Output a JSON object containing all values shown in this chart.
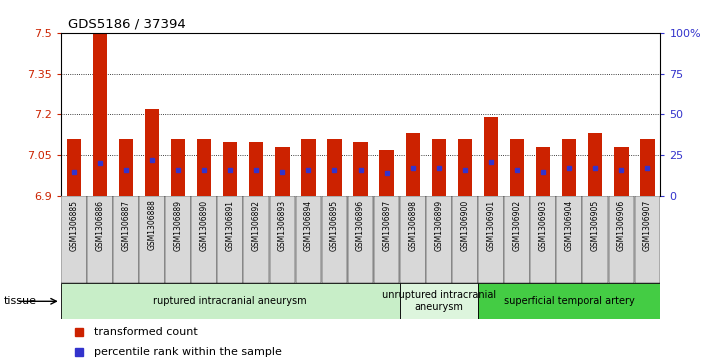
{
  "title": "GDS5186 / 37394",
  "samples": [
    "GSM1306885",
    "GSM1306886",
    "GSM1306887",
    "GSM1306888",
    "GSM1306889",
    "GSM1306890",
    "GSM1306891",
    "GSM1306892",
    "GSM1306893",
    "GSM1306894",
    "GSM1306895",
    "GSM1306896",
    "GSM1306897",
    "GSM1306898",
    "GSM1306899",
    "GSM1306900",
    "GSM1306901",
    "GSM1306902",
    "GSM1306903",
    "GSM1306904",
    "GSM1306905",
    "GSM1306906",
    "GSM1306907"
  ],
  "bar_values": [
    7.11,
    7.5,
    7.11,
    7.22,
    7.11,
    7.11,
    7.1,
    7.1,
    7.08,
    7.11,
    7.11,
    7.1,
    7.07,
    7.13,
    7.11,
    7.11,
    7.19,
    7.11,
    7.08,
    7.11,
    7.13,
    7.08,
    7.11
  ],
  "percentile_values": [
    15,
    20,
    16,
    22,
    16,
    16,
    16,
    16,
    15,
    16,
    16,
    16,
    14,
    17,
    17,
    16,
    21,
    16,
    15,
    17,
    17,
    16,
    17
  ],
  "ymin": 6.9,
  "ymax": 7.5,
  "yticks": [
    6.9,
    7.05,
    7.2,
    7.35,
    7.5
  ],
  "ytick_labels": [
    "6.9",
    "7.05",
    "7.2",
    "7.35",
    "7.5"
  ],
  "right_yticks": [
    0,
    25,
    50,
    75,
    100
  ],
  "right_ytick_labels": [
    "0",
    "25",
    "50",
    "75",
    "100%"
  ],
  "bar_color": "#cc2200",
  "blue_color": "#3333cc",
  "xlabel_bg": "#d8d8d8",
  "tissue_groups": [
    {
      "label": "ruptured intracranial aneurysm",
      "start": 0,
      "end": 13,
      "color": "#c8eec8"
    },
    {
      "label": "unruptured intracranial\naneurysm",
      "start": 13,
      "end": 16,
      "color": "#ddf5dd"
    },
    {
      "label": "superficial temporal artery",
      "start": 16,
      "end": 23,
      "color": "#44cc44"
    }
  ],
  "legend_items": [
    {
      "label": "transformed count",
      "color": "#cc2200"
    },
    {
      "label": "percentile rank within the sample",
      "color": "#3333cc"
    }
  ],
  "tissue_label": "tissue"
}
